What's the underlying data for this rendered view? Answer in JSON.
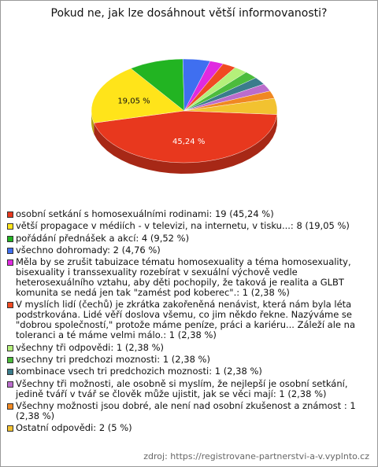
{
  "chart_data": {
    "type": "pie",
    "title": "Pokud ne, jak lze dosáhnout větší informovanosti?",
    "source": "zdroj: https://registrovane-partnerstvi-a-v.vyplnto.cz",
    "categories": [
      "osobní setkání s homosexuálními rodinami: 19 (45,24 %)",
      "větší propagace v médiích - v televizi, na internetu, v tisku...: 8 (19,05 %)",
      "pořádání přednášek a akcí: 4 (9,52 %)",
      "všechno dohromady: 2 (4,76 %)",
      "Měla by se zrušit tabuizace tématu homosexuality a téma homosexuality, bisexuality i transsexuality rozebírat v sexuální výchově vedle heterosexuálního vztahu, aby děti pochopily, že taková je realita a GLBT komunita se nedá jen tak \"zamést pod koberec\".: 1 (2,38 %)",
      "V myslích lidí (čechů) je zkrátka zakořeněná nenávist, která nám byla léta podstrkována. Lidé věří doslova všemu, co jim někdo řekne. Nazýváme se \"dobrou společností,\" protože máme peníze, práci a kariéru... Záleží ale na toleranci a té máme velmi málo.: 1 (2,38 %)",
      "všechny tři odpovědi: 1 (2,38 %)",
      "vsechny tri predchozi moznosti: 1 (2,38 %)",
      "kombinace vsech tri predchozich moznosti: 1 (2,38 %)",
      "Všechny tři možnosti, ale osobně si myslím, že nejlepší je osobní setkání, jedině tváří v tvář se člověk může ujistit, jak se věci mají: 1 (2,38 %)",
      "Všechny možnosti jsou dobré, ale není nad osobní zkušenost a známost : 1 (2,38 %)",
      "Ostatní odpovědi: 2 (5 %)"
    ],
    "values": [
      45.24,
      19.05,
      9.52,
      4.76,
      2.38,
      2.38,
      2.38,
      2.38,
      2.38,
      2.38,
      2.38,
      5
    ],
    "value_labels": [
      "45,24 %",
      "19,05 %",
      null,
      null,
      null,
      null,
      null,
      null,
      null,
      null,
      null,
      null
    ],
    "colors": [
      "#e8381e",
      "#ffe41a",
      "#22b422",
      "#3f6ff0",
      "#e02ae0",
      "#f04a22",
      "#b4f07a",
      "#4cbc3c",
      "#3a7c8c",
      "#bb6ccc",
      "#f08822",
      "#f2c230"
    ]
  }
}
